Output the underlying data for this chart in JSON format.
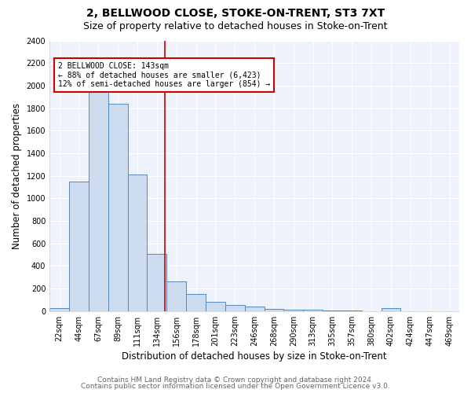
{
  "title": "2, BELLWOOD CLOSE, STOKE-ON-TRENT, ST3 7XT",
  "subtitle": "Size of property relative to detached houses in Stoke-on-Trent",
  "xlabel": "Distribution of detached houses by size in Stoke-on-Trent",
  "ylabel": "Number of detached properties",
  "bin_labels": [
    "22sqm",
    "44sqm",
    "67sqm",
    "89sqm",
    "111sqm",
    "134sqm",
    "156sqm",
    "178sqm",
    "201sqm",
    "223sqm",
    "246sqm",
    "268sqm",
    "290sqm",
    "313sqm",
    "335sqm",
    "357sqm",
    "380sqm",
    "402sqm",
    "424sqm",
    "447sqm",
    "469sqm"
  ],
  "bar_values": [
    25,
    1150,
    1940,
    1840,
    1210,
    510,
    265,
    155,
    80,
    52,
    42,
    18,
    14,
    10,
    4,
    3,
    2,
    25,
    0,
    0,
    0
  ],
  "bar_color": "#ccdcee",
  "bar_edge_color": "#5588bb",
  "vline_color": "#cc0000",
  "annotation_text": "2 BELLWOOD CLOSE: 143sqm\n← 88% of detached houses are smaller (6,423)\n12% of semi-detached houses are larger (854) →",
  "annotation_box_color": "white",
  "annotation_box_edgecolor": "#cc0000",
  "ylim": [
    0,
    2400
  ],
  "yticks": [
    0,
    200,
    400,
    600,
    800,
    1000,
    1200,
    1400,
    1600,
    1800,
    2000,
    2200,
    2400
  ],
  "footer1": "Contains HM Land Registry data © Crown copyright and database right 2024.",
  "footer2": "Contains public sector information licensed under the Open Government Licence v3.0.",
  "bg_color": "#ffffff",
  "plot_bg_color": "#eef3fb",
  "grid_color": "#ffffff",
  "title_fontsize": 10,
  "subtitle_fontsize": 9,
  "label_fontsize": 8.5,
  "tick_fontsize": 7,
  "footer_fontsize": 6.5
}
